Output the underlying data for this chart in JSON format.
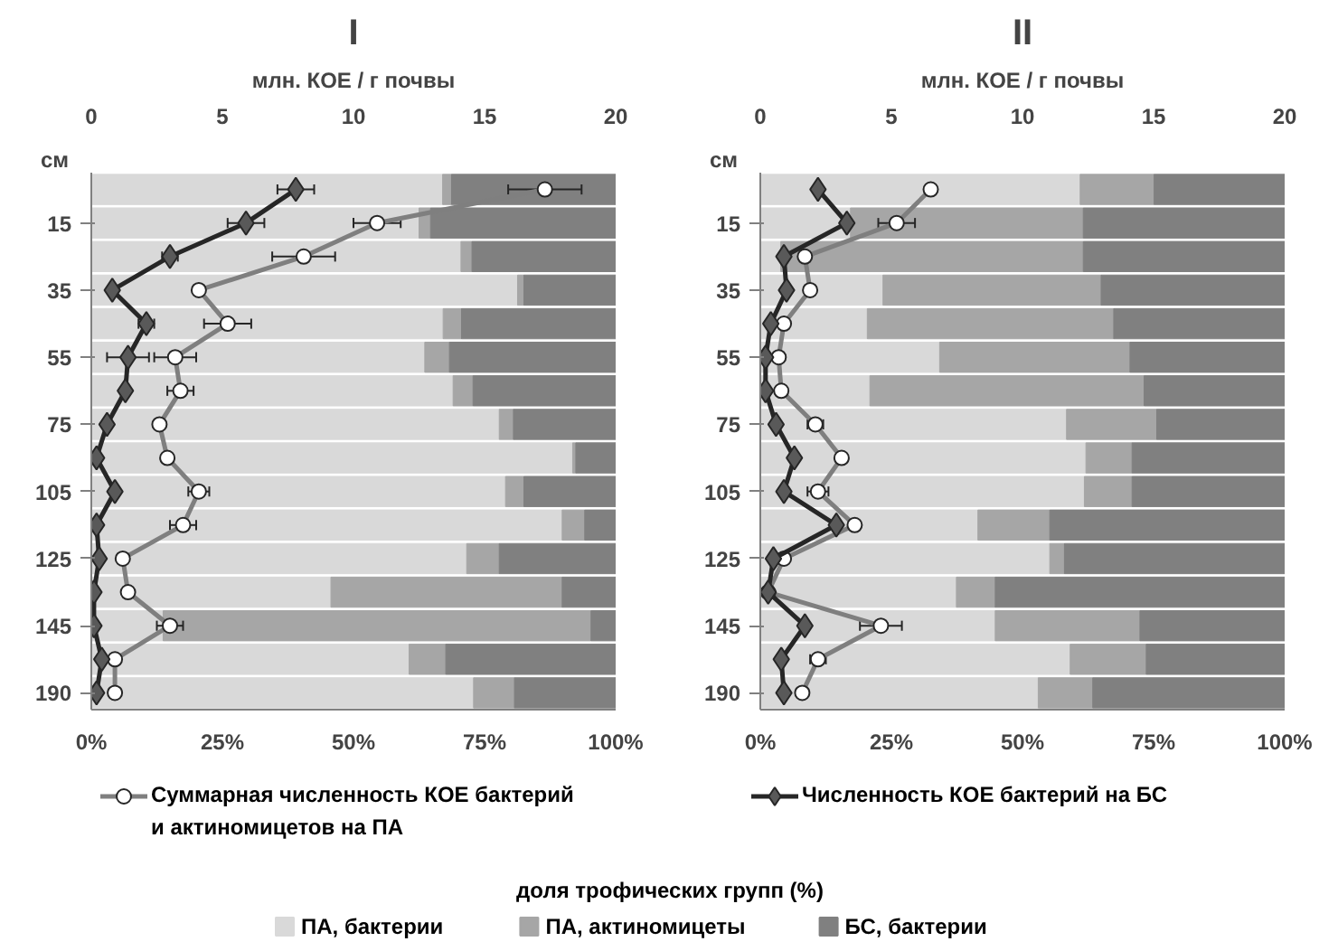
{
  "chart_data": [
    {
      "type": "bar",
      "orientation": "horizontal",
      "stacked": true,
      "title": "I",
      "x2label": "млн. КОЕ / г почвы",
      "ylabel": "см",
      "legend": "bottom",
      "legend_title": "доля трофических групп (%)",
      "categories": [
        null,
        "15",
        null,
        "35",
        null,
        "55",
        null,
        "75",
        null,
        "105",
        null,
        "125",
        null,
        "145",
        null,
        "190"
      ],
      "xlim": [
        0,
        100
      ],
      "xticks": [
        {
          "value": 0,
          "label": "0%"
        },
        {
          "value": 25,
          "label": "25%"
        },
        {
          "value": 50,
          "label": "50%"
        },
        {
          "value": 75,
          "label": "75%"
        },
        {
          "value": 100,
          "label": "100%"
        }
      ],
      "x2lim": [
        0,
        20
      ],
      "x2ticks": [
        0,
        5,
        10,
        15,
        20
      ],
      "series": [
        {
          "name": "ПА, бактерии",
          "color": "#d9d9d9",
          "values": [
            67.0,
            62.5,
            70.5,
            81.3,
            67.1,
            63.6,
            69.0,
            77.8,
            91.8,
            79.0,
            89.8,
            71.6,
            45.7,
            13.7,
            60.6,
            72.9
          ]
        },
        {
          "name": "ПА, актиномицеты",
          "color": "#a6a6a6",
          "values": [
            1.7,
            2.2,
            2.1,
            1.2,
            3.5,
            4.7,
            3.8,
            2.7,
            0.6,
            3.5,
            4.3,
            6.2,
            44.1,
            81.6,
            7.0,
            7.8
          ]
        },
        {
          "name": "БС, бактерии",
          "color": "#808080",
          "values": [
            31.3,
            35.3,
            27.4,
            17.5,
            29.4,
            31.7,
            27.2,
            19.5,
            7.6,
            17.5,
            5.9,
            22.2,
            10.2,
            4.7,
            32.4,
            19.3
          ]
        },
        {
          "type": "line",
          "axis": "x2",
          "marker": "circle",
          "name": "Суммарная численность КОЕ бактерий и актиномицетов на ПА",
          "color": "#7f7f7f",
          "values": [
            17.3,
            10.9,
            8.1,
            4.1,
            5.2,
            3.2,
            3.4,
            2.6,
            2.9,
            4.1,
            3.5,
            1.2,
            1.4,
            3.0,
            0.9,
            0.9
          ],
          "errors": [
            1.4,
            0.9,
            1.2,
            null,
            0.9,
            0.8,
            0.5,
            null,
            null,
            0.4,
            0.5,
            null,
            null,
            0.5,
            null,
            null
          ]
        },
        {
          "type": "line",
          "axis": "x2",
          "marker": "diamond",
          "color": "#262626",
          "values": [
            7.8,
            5.9,
            3.0,
            0.8,
            2.1,
            1.4,
            1.3,
            0.6,
            0.2,
            0.9,
            0.2,
            0.3,
            0.1,
            0.1,
            0.4,
            0.2
          ],
          "errors": [
            0.7,
            0.7,
            0.3,
            null,
            0.3,
            0.8,
            null,
            null,
            null,
            null,
            null,
            null,
            null,
            null,
            null,
            null
          ]
        }
      ]
    },
    {
      "type": "bar",
      "orientation": "horizontal",
      "stacked": true,
      "title": "II",
      "x2label": "млн. КОЕ / г почвы",
      "ylabel": "см",
      "legend": "bottom",
      "categories": [
        null,
        "15",
        null,
        "35",
        null,
        "55",
        null,
        "75",
        null,
        "105",
        null,
        "125",
        null,
        "145",
        null,
        "190"
      ],
      "xlim": [
        0,
        100
      ],
      "xticks": [
        {
          "value": 0,
          "label": "0%"
        },
        {
          "value": 25,
          "label": "25%"
        },
        {
          "value": 50,
          "label": "50%"
        },
        {
          "value": 75,
          "label": "75%"
        },
        {
          "value": 100,
          "label": "100%"
        }
      ],
      "x2lim": [
        0,
        20
      ],
      "x2ticks": [
        0,
        5,
        10,
        15,
        20
      ],
      "series": [
        {
          "color": "#d9d9d9",
          "values": [
            61.0,
            17.2,
            3.9,
            23.4,
            20.4,
            34.2,
            20.9,
            58.4,
            62.1,
            61.8,
            41.5,
            55.2,
            37.4,
            44.8,
            59.1,
            53.0
          ]
        },
        {
          "color": "#a6a6a6",
          "values": [
            14.1,
            44.4,
            57.7,
            41.6,
            47.0,
            36.3,
            52.3,
            17.2,
            8.8,
            9.1,
            13.7,
            2.8,
            7.4,
            27.6,
            14.5,
            10.4
          ]
        },
        {
          "color": "#808080",
          "values": [
            24.9,
            38.4,
            38.4,
            35.0,
            32.6,
            29.5,
            26.8,
            24.4,
            29.1,
            29.1,
            44.8,
            42.0,
            55.2,
            27.6,
            26.4,
            36.6
          ]
        },
        {
          "type": "line",
          "axis": "x2",
          "marker": "circle",
          "color": "#7f7f7f",
          "values": [
            6.5,
            5.2,
            1.7,
            1.9,
            0.9,
            0.7,
            0.8,
            2.1,
            3.1,
            2.2,
            3.6,
            0.9,
            0.3,
            4.6,
            2.2,
            1.6
          ],
          "errors": [
            null,
            0.7,
            null,
            null,
            null,
            null,
            null,
            0.3,
            null,
            0.4,
            null,
            null,
            null,
            0.8,
            0.3,
            null
          ]
        },
        {
          "type": "line",
          "axis": "x2",
          "marker": "diamond",
          "name": "Численность КОЕ бактерий на БС",
          "color": "#262626",
          "values": [
            2.2,
            3.3,
            0.9,
            1.0,
            0.4,
            0.2,
            0.2,
            0.6,
            1.3,
            0.9,
            2.9,
            0.5,
            0.3,
            1.7,
            0.8,
            0.9
          ]
        }
      ]
    }
  ]
}
